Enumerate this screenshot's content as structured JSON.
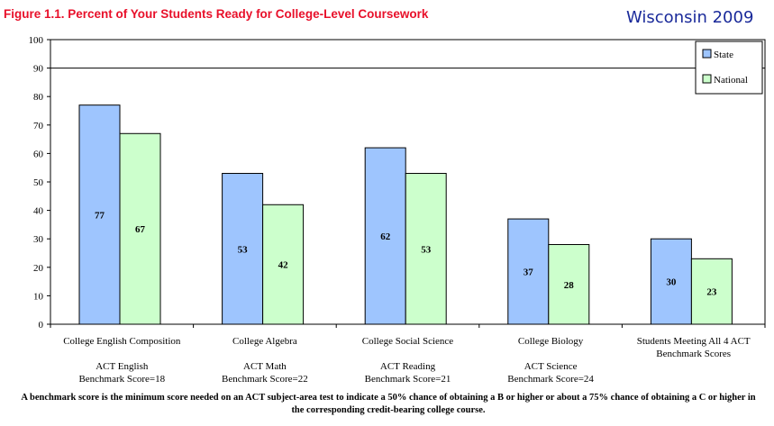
{
  "header": {
    "figure_title": "Figure 1.1.  Percent of Your Students Ready for College-Level Coursework",
    "state_year": "Wisconsin 2009"
  },
  "chart_data": {
    "type": "bar",
    "categories": [
      [
        "College English Composition",
        "",
        "ACT English",
        "Benchmark Score=18"
      ],
      [
        "College Algebra",
        "",
        "ACT Math",
        "Benchmark Score=22"
      ],
      [
        "College Social Science",
        "",
        "ACT Reading",
        "Benchmark Score=21"
      ],
      [
        "College Biology",
        "",
        "ACT Science",
        "Benchmark Score=24"
      ],
      [
        "Students Meeting All 4 ACT",
        "Benchmark Scores"
      ]
    ],
    "series": [
      {
        "name": "State",
        "values": [
          77,
          53,
          62,
          37,
          30
        ],
        "color": "#9ec5fe"
      },
      {
        "name": "National",
        "values": [
          67,
          42,
          53,
          28,
          23
        ],
        "color": "#ccffcc"
      }
    ],
    "ylim": [
      0,
      100
    ],
    "yticks": [
      0,
      10,
      20,
      30,
      40,
      50,
      60,
      70,
      80,
      90,
      100
    ],
    "grid": "single line at 90",
    "legend": "top-right",
    "data_labels": true
  },
  "footnote": "A benchmark score is the minimum score needed on an ACT subject-area test to indicate a 50% chance of obtaining a B or higher or about a 75% chance of obtaining a C or higher in the corresponding credit-bearing college course."
}
